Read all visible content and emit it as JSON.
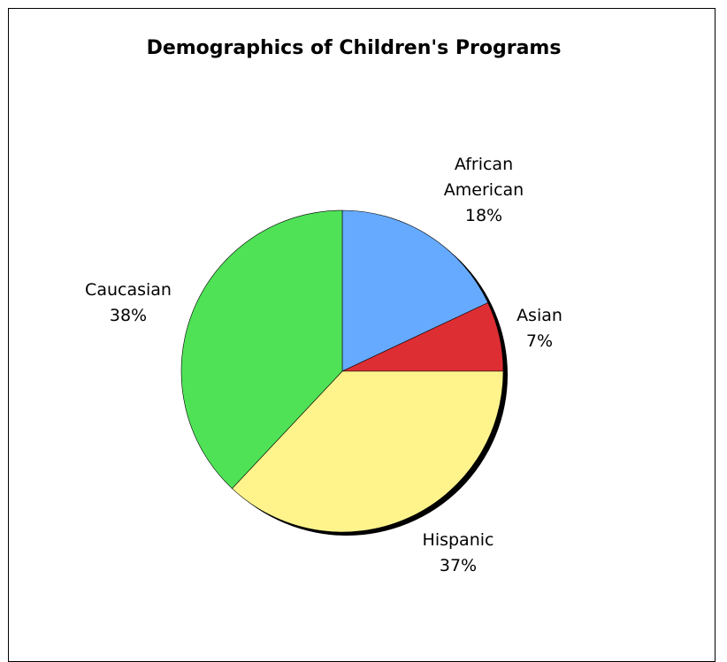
{
  "chart_data": {
    "type": "pie",
    "title": "Demographics of Children's Programs",
    "slices": [
      {
        "label": "African American",
        "label_lines": [
          "African",
          "American"
        ],
        "value": 18,
        "value_label": "18%",
        "color": "#66aaff"
      },
      {
        "label": "Asian",
        "label_lines": [
          "Asian"
        ],
        "value": 7,
        "value_label": "7%",
        "color": "#dd2e33"
      },
      {
        "label": "Hispanic",
        "label_lines": [
          "Hispanic"
        ],
        "value": 37,
        "value_label": "37%",
        "color": "#fff48c"
      },
      {
        "label": "Caucasian",
        "label_lines": [
          "Caucasian"
        ],
        "value": 38,
        "value_label": "38%",
        "color": "#4fe257"
      }
    ],
    "start_angle": "12 o'clock",
    "direction": "clockwise",
    "legend": "none",
    "shadow_color": "#000000"
  }
}
